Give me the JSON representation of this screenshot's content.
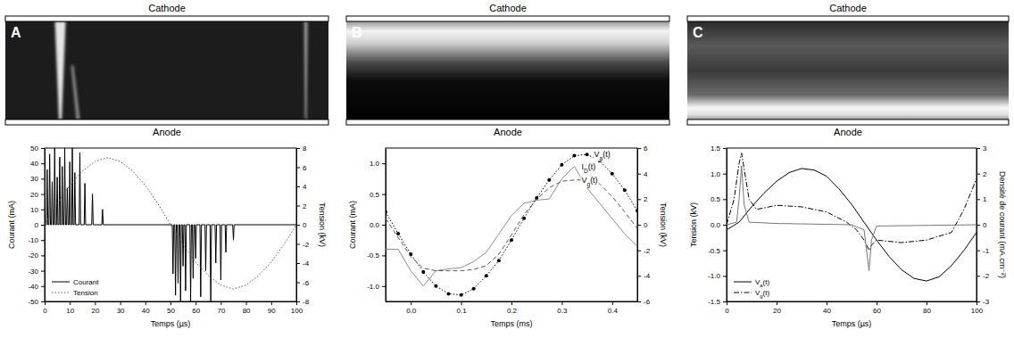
{
  "chart_data": [
    {
      "type": "line",
      "panel_label": "A",
      "electrode_top": "Cathode",
      "electrode_bottom": "Anode",
      "x_label": "Temps (µs)",
      "y_label": "Courant (mA)",
      "y2_label": "Tension (kV)",
      "xlim": [
        0,
        100
      ],
      "xticks": [
        0,
        10,
        20,
        30,
        40,
        50,
        60,
        70,
        80,
        90,
        100
      ],
      "ylim": [
        -50,
        50
      ],
      "yticks": [
        -50,
        -40,
        -30,
        -20,
        -10,
        0,
        10,
        20,
        30,
        40,
        50
      ],
      "y2lim": [
        -8,
        8
      ],
      "y2ticks": [
        -8,
        -6,
        -4,
        -2,
        0,
        2,
        4,
        6,
        8
      ],
      "legend": "lower left",
      "series": [
        {
          "name": "Courant",
          "color": "#000000",
          "line_style": "solid",
          "x": [
            0,
            0.7,
            1,
            1.3,
            1.7,
            2,
            2.3,
            2.7,
            3,
            3.3,
            3.7,
            4,
            4.3,
            4.7,
            5,
            5.3,
            5.7,
            6,
            6.3,
            6.7,
            7,
            7.3,
            7.7,
            8,
            8.3,
            8.7,
            9,
            9.3,
            9.7,
            10,
            10.3,
            10.7,
            11,
            11.3,
            11.7,
            12,
            12.3,
            13.7,
            14,
            14.3,
            15.7,
            16,
            16.3,
            18.7,
            19,
            19.3,
            22.7,
            23,
            23.3,
            50.7,
            51,
            51.3,
            51.7,
            52,
            52.3,
            52.7,
            53,
            53.3,
            53.7,
            54,
            54.3,
            54.7,
            55,
            55.3,
            55.7,
            56,
            56.3,
            57.7,
            58,
            58.3,
            58.7,
            59,
            59.3,
            59.7,
            60,
            60.3,
            61.7,
            62,
            62.3,
            63.7,
            64,
            64.3,
            65.7,
            66,
            66.3,
            67.7,
            68,
            68.3,
            69.7,
            70,
            70.3,
            71.7,
            72,
            72.3,
            74.7,
            75,
            75.3,
            100
          ],
          "values": [
            0,
            0,
            36,
            0,
            0,
            46,
            0,
            0,
            28,
            0,
            0,
            50,
            0,
            0,
            31,
            0,
            0,
            44,
            0,
            0,
            38,
            0,
            0,
            50,
            0,
            0,
            24,
            0,
            0,
            41,
            0,
            0,
            50,
            0,
            0,
            34,
            0,
            0,
            47,
            0,
            0,
            27,
            0,
            0,
            20,
            0,
            0,
            10,
            0,
            0,
            -32,
            0,
            0,
            -46,
            0,
            0,
            -38,
            0,
            0,
            -50,
            0,
            0,
            -27,
            0,
            0,
            -43,
            0,
            0,
            -50,
            0,
            0,
            -35,
            0,
            0,
            -22,
            0,
            0,
            -47,
            0,
            0,
            -30,
            0,
            0,
            -50,
            0,
            0,
            -25,
            0,
            0,
            -36,
            0,
            0,
            -18,
            0,
            0,
            -10,
            0,
            0
          ]
        },
        {
          "name": "Tension",
          "color": "#555555",
          "line_style": "dotted",
          "axis": "y2",
          "x": [
            0,
            5,
            10,
            15,
            20,
            25,
            30,
            35,
            40,
            45,
            50,
            55,
            60,
            65,
            70,
            75,
            80,
            85,
            90,
            95,
            100
          ],
          "values": [
            0,
            2.2,
            4.1,
            5.6,
            6.6,
            7.0,
            6.6,
            5.6,
            4.1,
            2.2,
            0,
            -2.1,
            -3.9,
            -5.3,
            -6.3,
            -6.7,
            -6.3,
            -5.3,
            -3.9,
            -2.1,
            0
          ]
        }
      ]
    },
    {
      "type": "line",
      "panel_label": "B",
      "electrode_top": "Cathode",
      "electrode_bottom": "Anode",
      "x_label": "Temps (ms)",
      "y_label": "Courant (mA)",
      "y2_label": "Tension (kV)",
      "xlim": [
        -0.05,
        0.45
      ],
      "xticks": [
        {
          "value": 0,
          "label": "0.0"
        },
        0.1,
        0.2,
        0.3,
        0.4
      ],
      "ylim": [
        -1.25,
        1.25
      ],
      "yticks": [
        {
          "value": -1,
          "label": "-1.0"
        },
        -0.5,
        {
          "value": 0,
          "label": "0.0"
        },
        0.5,
        {
          "value": 1,
          "label": "1.0"
        }
      ],
      "y2lim": [
        -6,
        6
      ],
      "y2ticks": [
        -6,
        -4,
        -2,
        0,
        2,
        4,
        6
      ],
      "legend": "inline",
      "x": [
        -0.05,
        -0.025,
        0,
        0.025,
        0.05,
        0.075,
        0.1,
        0.125,
        0.15,
        0.175,
        0.2,
        0.225,
        0.25,
        0.275,
        0.3,
        0.325,
        0.35,
        0.375,
        0.4,
        0.425,
        0.45
      ],
      "series": [
        {
          "name": "ID(t)",
          "color": "#8c8c8c",
          "line_style": "solid",
          "values": [
            -0.4,
            -0.4,
            -0.75,
            -1.0,
            -0.75,
            -0.72,
            -0.7,
            -0.6,
            -0.45,
            -0.15,
            0.15,
            0.35,
            0.4,
            0.42,
            0.75,
            0.95,
            0.6,
            0.35,
            0.1,
            -0.15,
            -0.35
          ]
        },
        {
          "name": "Va(t)",
          "color": "#000000",
          "line_style": "dotted",
          "marker": "circle",
          "axis": "y2",
          "values": [
            1.0,
            -0.7,
            -2.3,
            -3.7,
            -4.8,
            -5.4,
            -5.5,
            -5.0,
            -4.0,
            -2.8,
            -1.2,
            0.5,
            2.1,
            3.5,
            4.7,
            5.4,
            5.5,
            5.0,
            4.0,
            2.7,
            1.1
          ]
        },
        {
          "name": "Vg(t)",
          "color": "#555555",
          "line_style": "dashed",
          "axis": "y2",
          "values": [
            0.5,
            -1.0,
            -2.5,
            -3.4,
            -3.6,
            -3.6,
            -3.6,
            -3.5,
            -3.2,
            -2.3,
            -0.8,
            0.8,
            2.0,
            2.9,
            3.4,
            3.5,
            3.5,
            3.2,
            2.2,
            1.0,
            -0.3
          ]
        }
      ]
    },
    {
      "type": "line",
      "panel_label": "C",
      "electrode_top": "Cathode",
      "electrode_bottom": "Anode",
      "x_label": "Temps (µs)",
      "y_label": "Tension (kV)",
      "y2_label": "Densité de courant (mA.cm⁻²)",
      "xlim": [
        0,
        100
      ],
      "xticks": [
        0,
        20,
        40,
        60,
        80,
        100
      ],
      "ylim": [
        -1.5,
        1.5
      ],
      "yticks": [
        -1.5,
        {
          "value": -1,
          "label": "-1.0"
        },
        -0.5,
        {
          "value": 0,
          "label": "0.0"
        },
        0.5,
        {
          "value": 1,
          "label": "1.0"
        },
        1.5
      ],
      "y2lim": [
        -3,
        3
      ],
      "y2ticks": [
        -3,
        -2,
        -1,
        0,
        1,
        2,
        3
      ],
      "legend": "lower left",
      "x": [
        0,
        5,
        10,
        15,
        20,
        25,
        30,
        35,
        40,
        45,
        50,
        55,
        60,
        65,
        70,
        75,
        80,
        85,
        90,
        95,
        100
      ],
      "series": [
        {
          "name": "Va(t)",
          "color": "#000000",
          "line_style": "solid",
          "values": [
            -0.1,
            0.05,
            0.35,
            0.62,
            0.85,
            1.02,
            1.1,
            1.07,
            0.95,
            0.7,
            0.4,
            0.05,
            -0.3,
            -0.62,
            -0.88,
            -1.05,
            -1.1,
            -1.02,
            -0.8,
            -0.5,
            -0.15
          ]
        },
        {
          "name": "Vg(t)",
          "color": "#000000",
          "line_style": "dashdot",
          "x": [
            0,
            3,
            5,
            6,
            7,
            9,
            12,
            20,
            30,
            40,
            48,
            52,
            55,
            57,
            58,
            60,
            70,
            80,
            90,
            95,
            100
          ],
          "values": [
            0.0,
            0.5,
            1.2,
            1.4,
            1.1,
            0.5,
            0.3,
            0.38,
            0.35,
            0.25,
            0.05,
            -0.1,
            -0.3,
            -0.5,
            -0.4,
            -0.3,
            -0.35,
            -0.3,
            -0.15,
            0.3,
            0.9
          ]
        },
        {
          "color": "#777777",
          "line_style": "solid",
          "axis": "y2",
          "x": [
            0,
            4,
            5,
            6,
            7,
            9,
            20,
            50,
            55,
            57,
            58,
            60,
            100
          ],
          "values": [
            0,
            0.1,
            1.0,
            2.3,
            0.8,
            0.1,
            0.05,
            0,
            -0.2,
            -1.8,
            -0.6,
            -0.05,
            0
          ]
        }
      ]
    }
  ]
}
